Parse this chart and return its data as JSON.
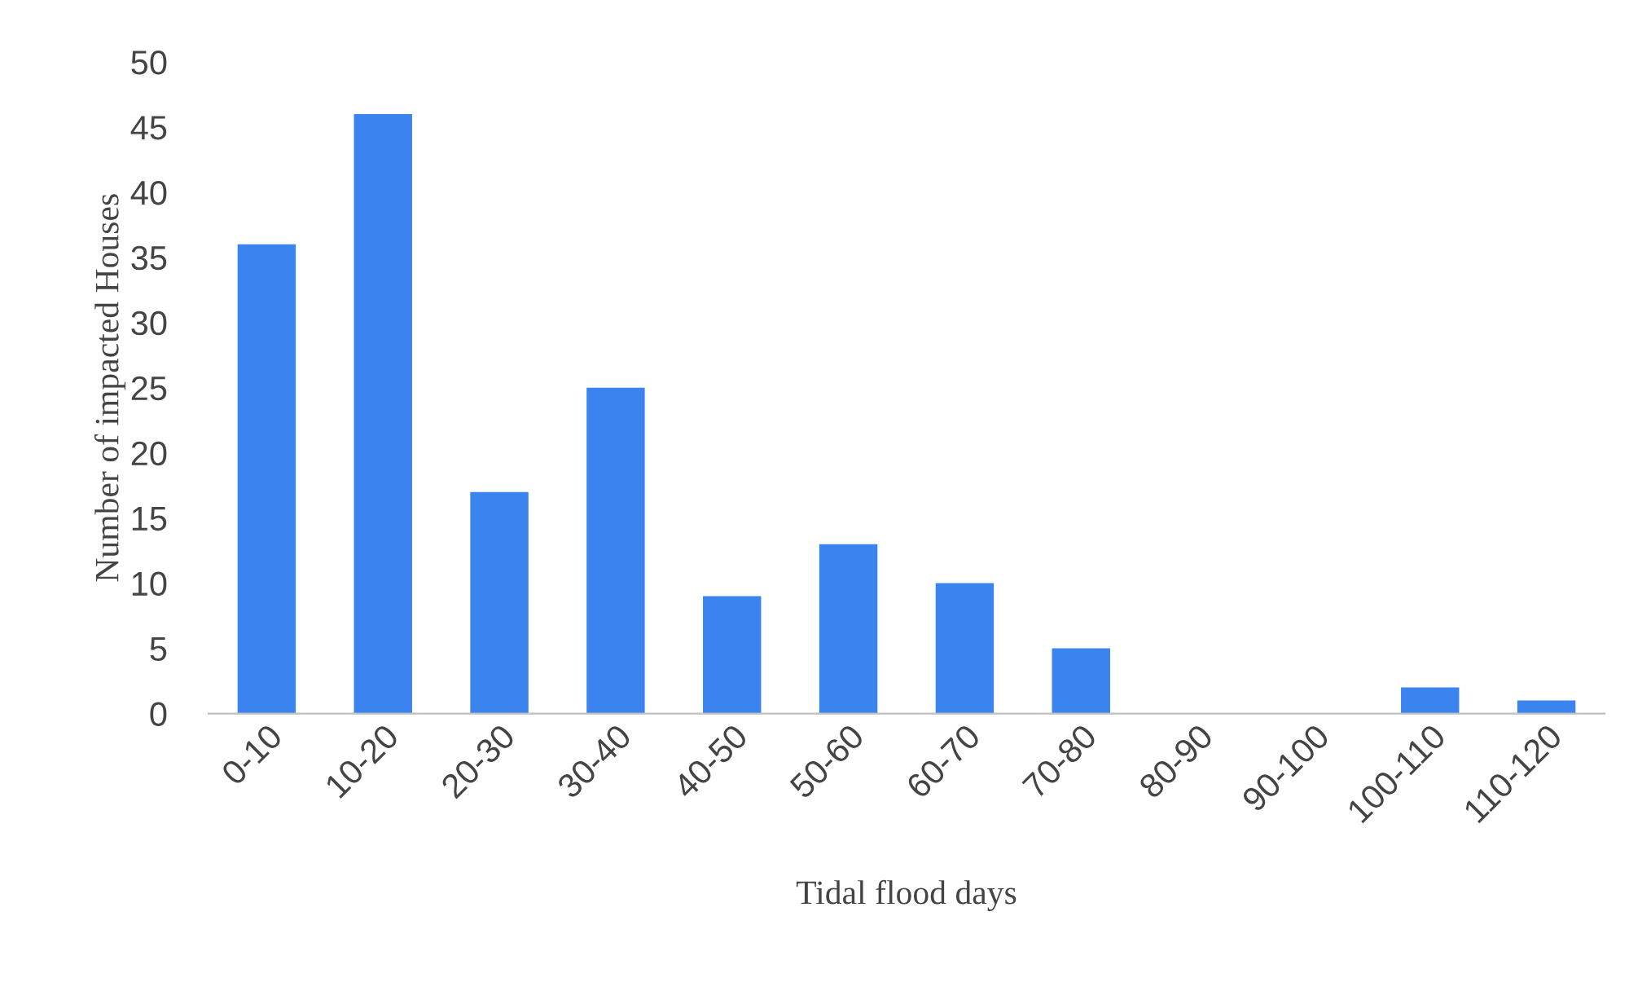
{
  "chart_data": {
    "type": "bar",
    "categories": [
      "0-10",
      "10-20",
      "20-30",
      "30-40",
      "40-50",
      "50-60",
      "60-70",
      "70-80",
      "80-90",
      "90-100",
      "100-110",
      "110-120"
    ],
    "values": [
      36,
      46,
      17,
      25,
      9,
      13,
      10,
      5,
      0,
      0,
      2,
      1
    ],
    "color": "#3b84f0",
    "xlabel": "Tidal flood days",
    "ylabel": "Number of impacted Houses",
    "ylim": [
      0,
      50
    ],
    "yticks": [
      0,
      5,
      10,
      15,
      20,
      25,
      30,
      35,
      40,
      45,
      50
    ]
  }
}
